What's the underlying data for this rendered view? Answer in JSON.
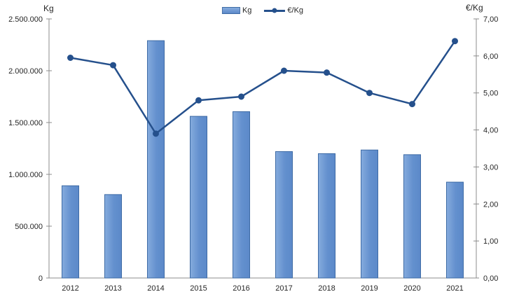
{
  "chart": {
    "left_axis_title": "Kg",
    "right_axis_title": "€/Kg",
    "legend": {
      "kg_label": "Kg",
      "eur_label": "€/Kg"
    }
  },
  "chart_data": {
    "type": "combo",
    "subtype": "bar+line-dual-axis",
    "categories": [
      "2012",
      "2013",
      "2014",
      "2015",
      "2016",
      "2017",
      "2018",
      "2019",
      "2020",
      "2021"
    ],
    "series": [
      {
        "name": "Kg",
        "type": "bar",
        "axis": "left",
        "values": [
          890000,
          805000,
          2290000,
          1560000,
          1605000,
          1220000,
          1200000,
          1235000,
          1190000,
          925000
        ]
      },
      {
        "name": "€/Kg",
        "type": "line",
        "axis": "right",
        "values": [
          5.95,
          5.75,
          3.9,
          4.8,
          4.9,
          5.6,
          5.55,
          5.0,
          4.7,
          6.4
        ]
      }
    ],
    "left_axis": {
      "title": "Kg",
      "min": 0,
      "max": 2500000,
      "step": 500000,
      "tick_labels": [
        "0",
        "500.000",
        "1.000.000",
        "1.500.000",
        "2.000.000",
        "2.500.000"
      ]
    },
    "right_axis": {
      "title": "€/Kg",
      "min": 0,
      "max": 7,
      "step": 1,
      "tick_labels": [
        "0,00",
        "1,00",
        "2,00",
        "3,00",
        "4,00",
        "5,00",
        "6,00",
        "7,00"
      ]
    },
    "legend": {
      "position": "top-center",
      "entries": [
        "Kg",
        "€/Kg"
      ]
    },
    "grid": false,
    "colors": {
      "bar_fill": "#6390CE",
      "bar_fill_light": "#85ABDD",
      "bar_fill_dark": "#5C89C9",
      "bar_border": "#3E6BA5",
      "line": "#25508C",
      "marker": "#25508C",
      "axis": "#8C8C8C",
      "text": "#262626",
      "background": "#FFFFFF"
    }
  }
}
